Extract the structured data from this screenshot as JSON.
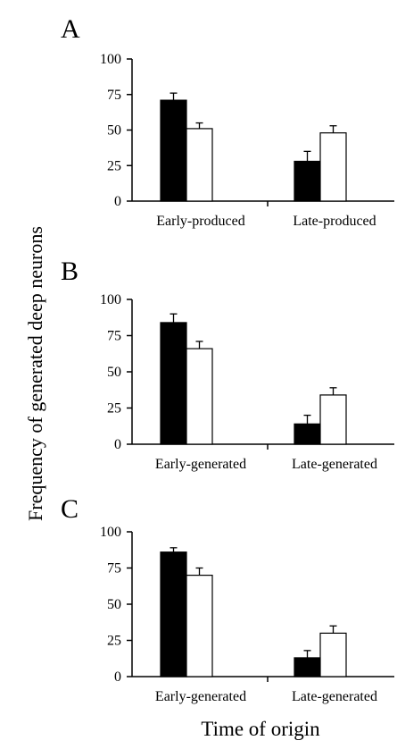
{
  "figure": {
    "ylabel": "Frequency of generated deep neurons",
    "xlabel": "Time of origin"
  },
  "colors": {
    "series_a": "#000000",
    "series_b": "#ffffff",
    "stroke": "#000000"
  },
  "chart_data": [
    {
      "type": "bar",
      "panel": "A",
      "categories": [
        "Early-produced",
        "Late-produced"
      ],
      "ylim": [
        0,
        100
      ],
      "yticks": [
        "0",
        "25",
        "50",
        "75",
        "100"
      ],
      "grid": false,
      "legend": "none",
      "series": [
        {
          "values": [
            71,
            28
          ],
          "errors": [
            5,
            7
          ],
          "color": "#000000"
        },
        {
          "values": [
            51,
            48
          ],
          "errors": [
            4,
            5
          ],
          "color": "#ffffff"
        }
      ]
    },
    {
      "type": "bar",
      "panel": "B",
      "categories": [
        "Early-generated",
        "Late-generated"
      ],
      "ylim": [
        0,
        100
      ],
      "yticks": [
        "0",
        "25",
        "50",
        "75",
        "100"
      ],
      "grid": false,
      "legend": "none",
      "series": [
        {
          "values": [
            84,
            14
          ],
          "errors": [
            6,
            6
          ],
          "color": "#000000"
        },
        {
          "values": [
            66,
            34
          ],
          "errors": [
            5,
            5
          ],
          "color": "#ffffff"
        }
      ]
    },
    {
      "type": "bar",
      "panel": "C",
      "categories": [
        "Early-generated",
        "Late-generated"
      ],
      "ylim": [
        0,
        100
      ],
      "yticks": [
        "0",
        "25",
        "50",
        "75",
        "100"
      ],
      "grid": false,
      "legend": "none",
      "series": [
        {
          "values": [
            86,
            13
          ],
          "errors": [
            3,
            5
          ],
          "color": "#000000"
        },
        {
          "values": [
            70,
            30
          ],
          "errors": [
            5,
            5
          ],
          "color": "#ffffff"
        }
      ]
    }
  ]
}
